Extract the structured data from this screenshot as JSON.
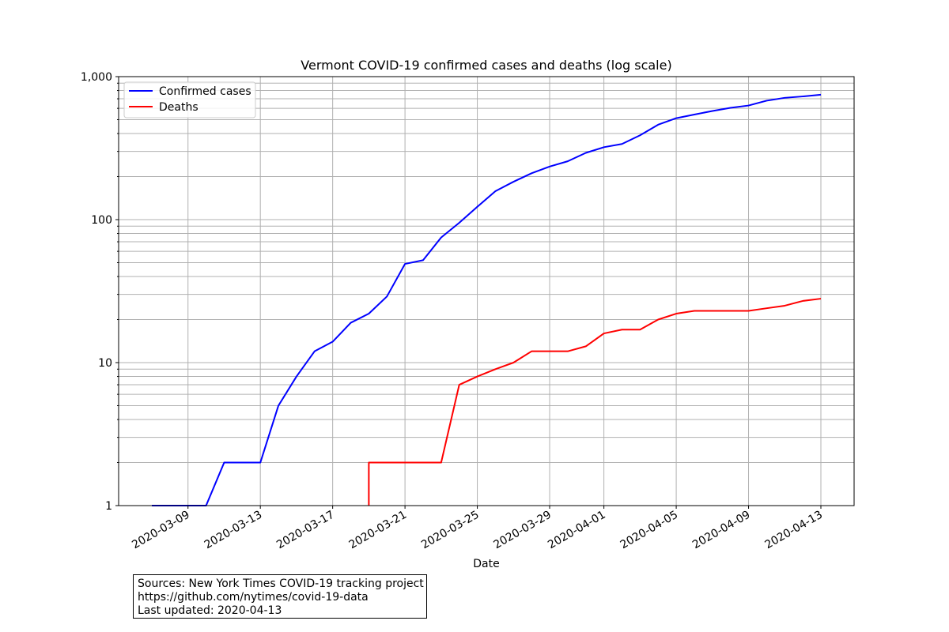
{
  "chart_data": {
    "type": "line",
    "title": "Vermont COVID-19 confirmed cases and deaths (log scale)",
    "xlabel": "Date",
    "ylabel": "",
    "yscale": "log",
    "ylim": [
      1,
      1000
    ],
    "y_ticks": [
      {
        "value": 1,
        "label": "1"
      },
      {
        "value": 10,
        "label": "10"
      },
      {
        "value": 100,
        "label": "100"
      },
      {
        "value": 1000,
        "label": "1,000"
      }
    ],
    "x_start": "2020-03-07",
    "x_end": "2020-04-14",
    "x_ticks": [
      "2020-03-09",
      "2020-03-13",
      "2020-03-17",
      "2020-03-21",
      "2020-03-25",
      "2020-03-29",
      "2020-04-01",
      "2020-04-05",
      "2020-04-09",
      "2020-04-13"
    ],
    "grid": true,
    "legend_position": "top-left",
    "series": [
      {
        "name": "Confirmed cases",
        "color": "#0000ff",
        "points": [
          [
            "2020-03-07",
            1
          ],
          [
            "2020-03-08",
            1
          ],
          [
            "2020-03-09",
            1
          ],
          [
            "2020-03-10",
            1
          ],
          [
            "2020-03-11",
            2
          ],
          [
            "2020-03-12",
            2
          ],
          [
            "2020-03-13",
            2
          ],
          [
            "2020-03-14",
            5
          ],
          [
            "2020-03-15",
            8
          ],
          [
            "2020-03-16",
            12
          ],
          [
            "2020-03-17",
            14
          ],
          [
            "2020-03-18",
            19
          ],
          [
            "2020-03-19",
            22
          ],
          [
            "2020-03-20",
            29
          ],
          [
            "2020-03-21",
            49
          ],
          [
            "2020-03-22",
            52
          ],
          [
            "2020-03-23",
            75
          ],
          [
            "2020-03-24",
            95
          ],
          [
            "2020-03-25",
            123
          ],
          [
            "2020-03-26",
            158
          ],
          [
            "2020-03-27",
            184
          ],
          [
            "2020-03-28",
            211
          ],
          [
            "2020-03-29",
            235
          ],
          [
            "2020-03-30",
            256
          ],
          [
            "2020-03-31",
            293
          ],
          [
            "2020-04-01",
            321
          ],
          [
            "2020-04-02",
            338
          ],
          [
            "2020-04-03",
            389
          ],
          [
            "2020-04-04",
            461
          ],
          [
            "2020-04-05",
            512
          ],
          [
            "2020-04-06",
            543
          ],
          [
            "2020-04-07",
            575
          ],
          [
            "2020-04-08",
            605
          ],
          [
            "2020-04-09",
            628
          ],
          [
            "2020-04-10",
            679
          ],
          [
            "2020-04-11",
            711
          ],
          [
            "2020-04-12",
            727
          ],
          [
            "2020-04-13",
            748
          ]
        ]
      },
      {
        "name": "Deaths",
        "color": "#ff0000",
        "points": [
          [
            "2020-03-19",
            1
          ],
          [
            "2020-03-19",
            2
          ],
          [
            "2020-03-20",
            2
          ],
          [
            "2020-03-21",
            2
          ],
          [
            "2020-03-22",
            2
          ],
          [
            "2020-03-23",
            2
          ],
          [
            "2020-03-24",
            7
          ],
          [
            "2020-03-25",
            8
          ],
          [
            "2020-03-26",
            9
          ],
          [
            "2020-03-27",
            10
          ],
          [
            "2020-03-28",
            12
          ],
          [
            "2020-03-29",
            12
          ],
          [
            "2020-03-30",
            12
          ],
          [
            "2020-03-31",
            13
          ],
          [
            "2020-04-01",
            16
          ],
          [
            "2020-04-02",
            17
          ],
          [
            "2020-04-03",
            17
          ],
          [
            "2020-04-04",
            20
          ],
          [
            "2020-04-05",
            22
          ],
          [
            "2020-04-06",
            23
          ],
          [
            "2020-04-07",
            23
          ],
          [
            "2020-04-08",
            23
          ],
          [
            "2020-04-09",
            23
          ],
          [
            "2020-04-10",
            24
          ],
          [
            "2020-04-11",
            25
          ],
          [
            "2020-04-12",
            27
          ],
          [
            "2020-04-13",
            28
          ]
        ]
      }
    ]
  },
  "sources": {
    "line1": "Sources: New York Times COVID-19 tracking project",
    "line2": "https://github.com/nytimes/covid-19-data",
    "line3": "Last updated: 2020-04-13"
  }
}
